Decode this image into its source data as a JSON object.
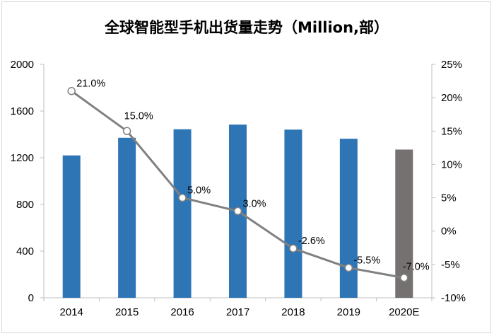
{
  "chart_data": {
    "type": "bar",
    "title": "全球智能型手机出货量走势（Million,部）",
    "categories": [
      "2014",
      "2015",
      "2016",
      "2017",
      "2018",
      "2019",
      "2020E"
    ],
    "series": [
      {
        "type": "bar",
        "axis": "left",
        "values": [
          1220,
          1371,
          1444,
          1484,
          1441,
          1363,
          1270
        ],
        "colors": [
          "#2e75b6",
          "#2e75b6",
          "#2e75b6",
          "#2e75b6",
          "#2e75b6",
          "#2e75b6",
          "#767171"
        ]
      },
      {
        "type": "line",
        "axis": "right",
        "values": [
          21.0,
          15.0,
          5.0,
          3.0,
          -2.6,
          -5.5,
          -7.0
        ],
        "labels": [
          "21.0%",
          "15.0%",
          "5.0%",
          "3.0%",
          "-2.6%",
          "-5.5%",
          "-7.0%"
        ],
        "color": "#808080"
      }
    ],
    "y_left": {
      "min": 0,
      "max": 2000,
      "ticks": [
        "0",
        "400",
        "800",
        "1200",
        "1600",
        "2000"
      ]
    },
    "y_right": {
      "min": -10,
      "max": 25,
      "ticks": [
        "-10%",
        "-5%",
        "0%",
        "5%",
        "10%",
        "15%",
        "20%",
        "25%"
      ]
    },
    "grid": false,
    "legend": "none"
  }
}
